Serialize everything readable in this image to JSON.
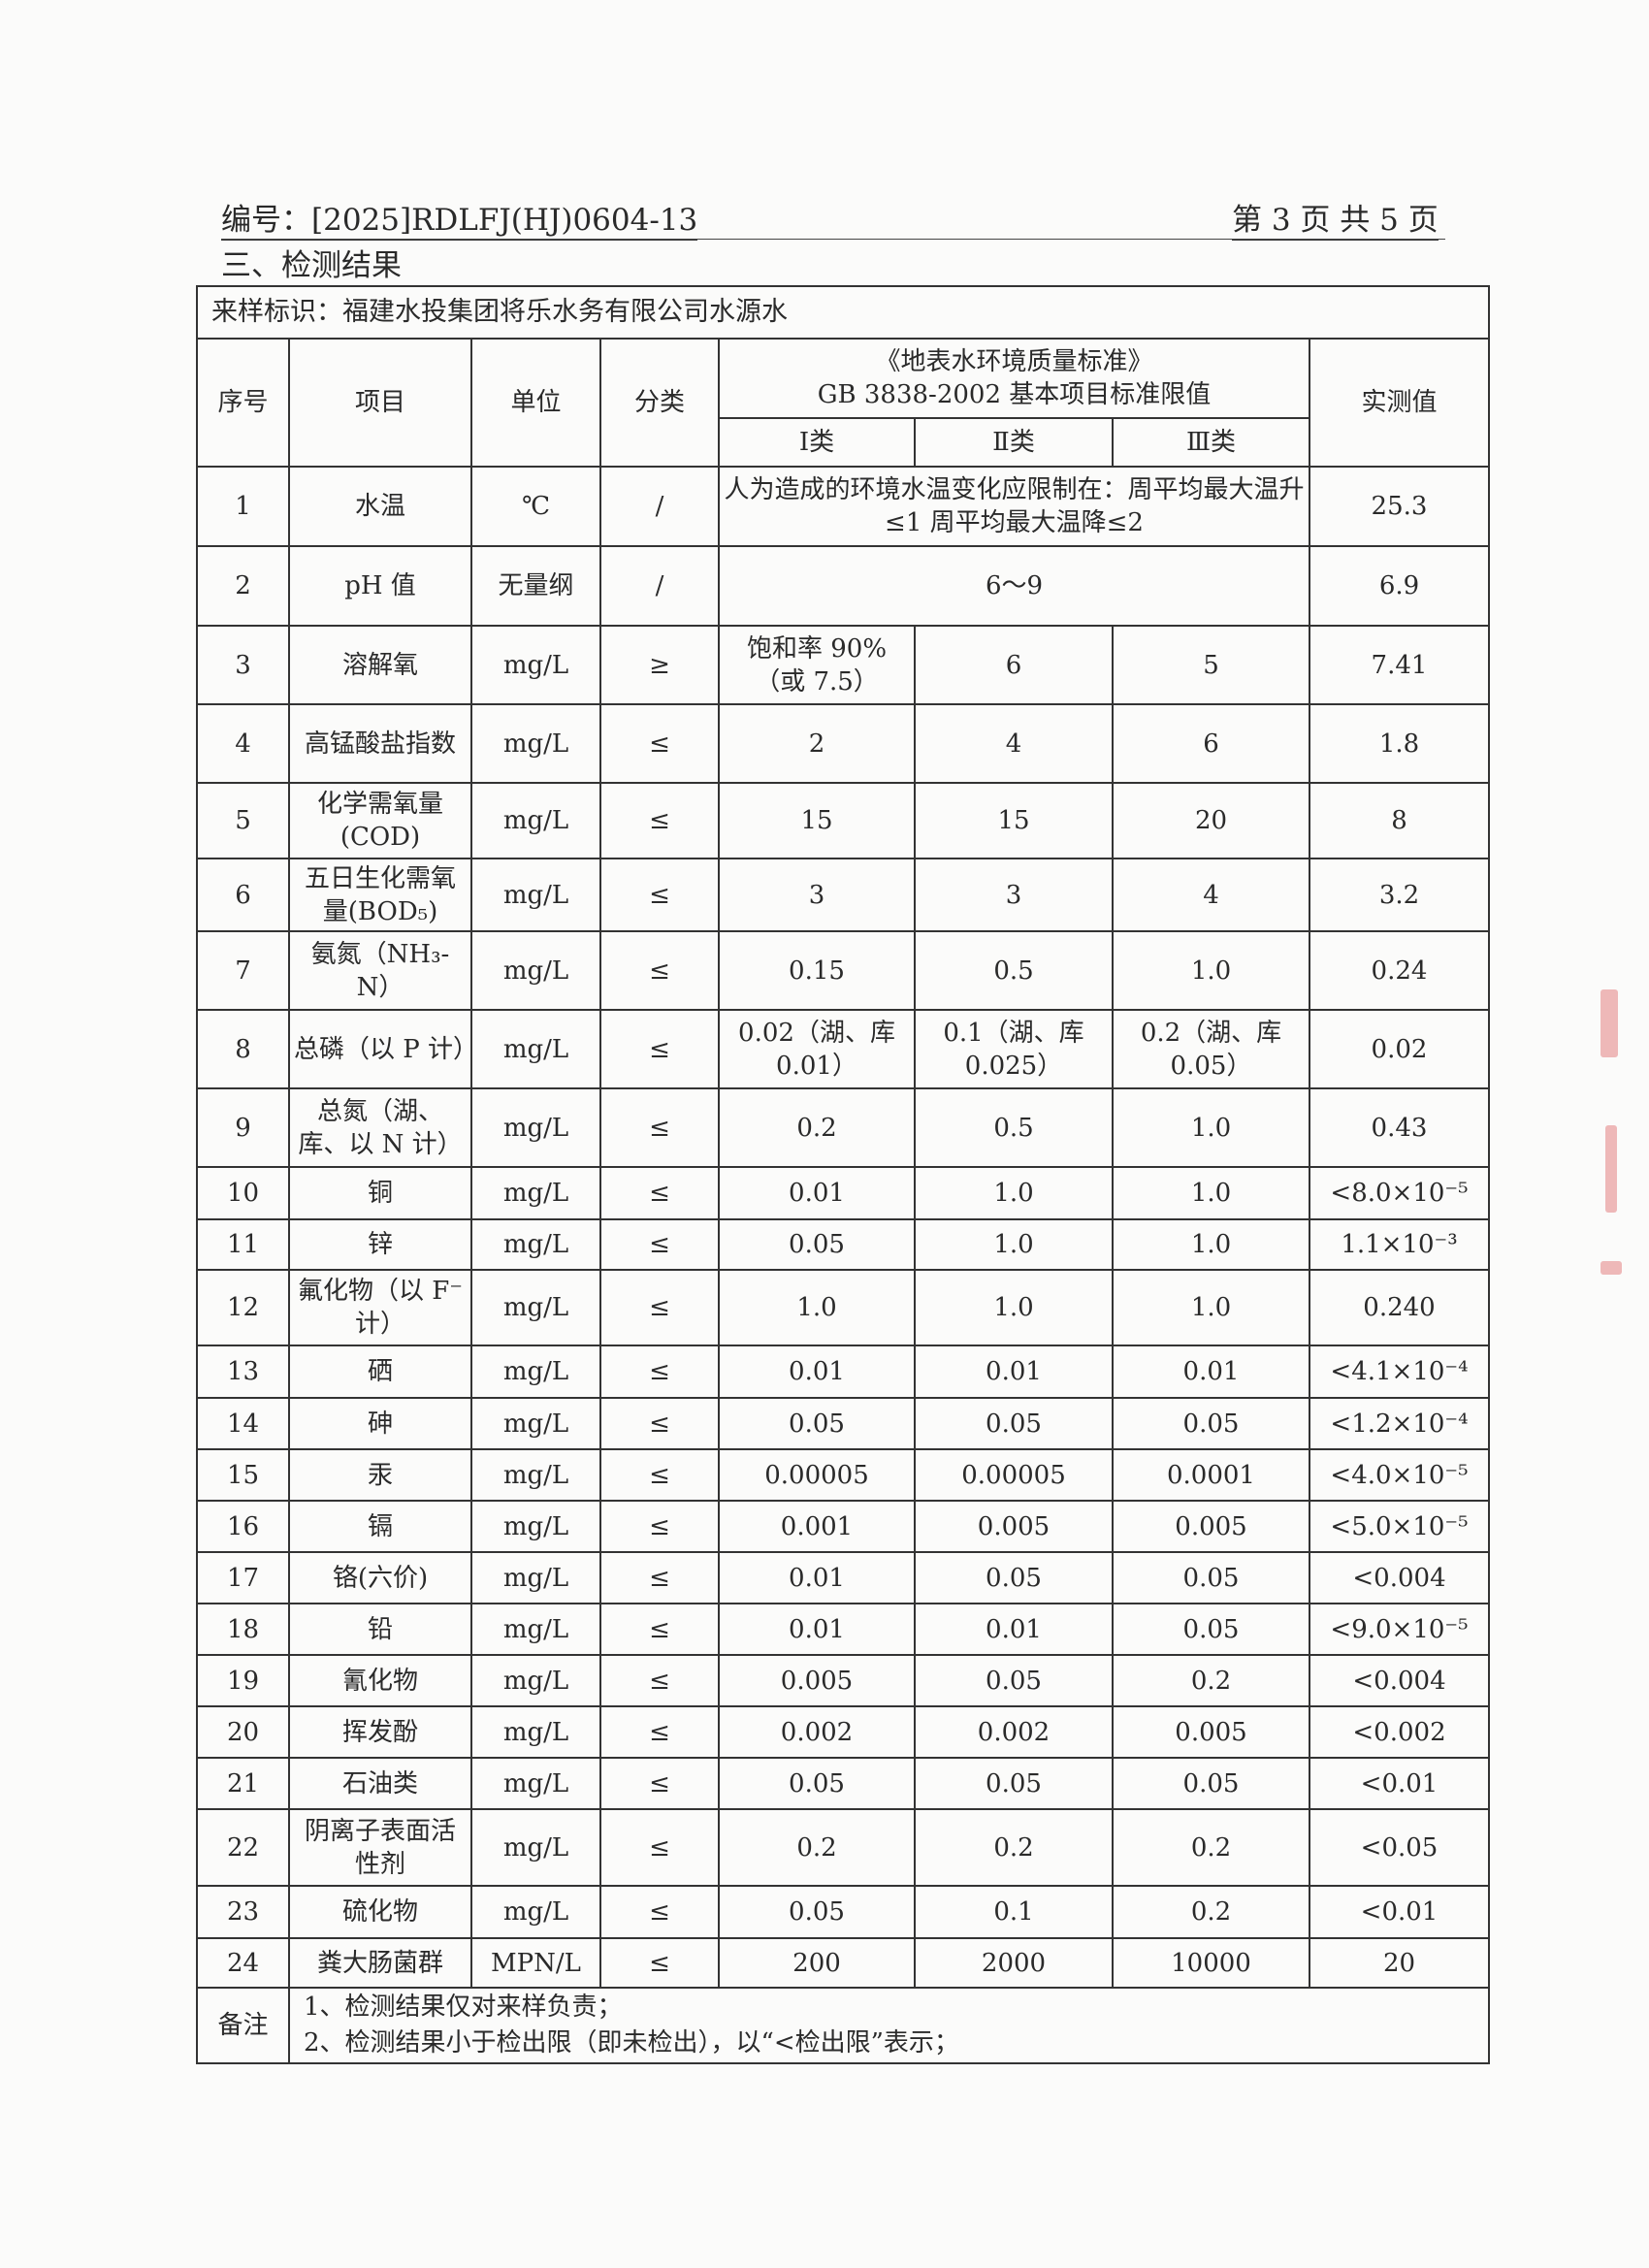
{
  "header": {
    "doc_no": "编号：[2025]RDLFJ(HJ)0604-13",
    "page_no": "第 3 页  共 5 页"
  },
  "section_title": "三、检测结果",
  "sample": "来样标识：福建水投集团将乐水务有限公司水源水",
  "columns": {
    "no": "序号",
    "item": "项目",
    "unit": "单位",
    "class": "分类",
    "standard": "《地表水环境质量标准》GB 3838-2002 基本项目标准限值",
    "standard_line1": "《地表水环境质量标准》",
    "standard_line2": "GB 3838-2002 基本项目标准限值",
    "c1": "Ⅰ类",
    "c2": "Ⅱ类",
    "c3": "Ⅲ类",
    "result": "实测值"
  },
  "rows": [
    {
      "no": "1",
      "item": "水温",
      "unit": "℃",
      "class": "/",
      "merged": "人为造成的环境水温变化应限制在：周平均最大温升≤1 周平均最大温降≤2",
      "result": "25.3"
    },
    {
      "no": "2",
      "item": "pH 值",
      "unit": "无量纲",
      "class": "/",
      "merged": "6～9",
      "result": "6.9"
    },
    {
      "no": "3",
      "item": "溶解氧",
      "unit": "mg/L",
      "class": "≥",
      "c1": "饱和率 90%（或 7.5）",
      "c2": "6",
      "c3": "5",
      "result": "7.41"
    },
    {
      "no": "4",
      "item": "高锰酸盐指数",
      "unit": "mg/L",
      "class": "≤",
      "c1": "2",
      "c2": "4",
      "c3": "6",
      "result": "1.8"
    },
    {
      "no": "5",
      "item": "化学需氧量(COD)",
      "unit": "mg/L",
      "class": "≤",
      "c1": "15",
      "c2": "15",
      "c3": "20",
      "result": "8"
    },
    {
      "no": "6",
      "item": "五日生化需氧量(BOD₅)",
      "unit": "mg/L",
      "class": "≤",
      "c1": "3",
      "c2": "3",
      "c3": "4",
      "result": "3.2"
    },
    {
      "no": "7",
      "item": "氨氮（NH₃-N）",
      "unit": "mg/L",
      "class": "≤",
      "c1": "0.15",
      "c2": "0.5",
      "c3": "1.0",
      "result": "0.24"
    },
    {
      "no": "8",
      "item": "总磷（以 P 计）",
      "unit": "mg/L",
      "class": "≤",
      "c1": "0.02（湖、库 0.01）",
      "c2": "0.1（湖、库 0.025）",
      "c3": "0.2（湖、库 0.05）",
      "result": "0.02"
    },
    {
      "no": "9",
      "item": "总氮（湖、库、以 N 计）",
      "unit": "mg/L",
      "class": "≤",
      "c1": "0.2",
      "c2": "0.5",
      "c3": "1.0",
      "result": "0.43"
    },
    {
      "no": "10",
      "item": "铜",
      "unit": "mg/L",
      "class": "≤",
      "c1": "0.01",
      "c2": "1.0",
      "c3": "1.0",
      "result": "<8.0×10⁻⁵"
    },
    {
      "no": "11",
      "item": "锌",
      "unit": "mg/L",
      "class": "≤",
      "c1": "0.05",
      "c2": "1.0",
      "c3": "1.0",
      "result": "1.1×10⁻³"
    },
    {
      "no": "12",
      "item": "氟化物（以 F⁻计）",
      "unit": "mg/L",
      "class": "≤",
      "c1": "1.0",
      "c2": "1.0",
      "c3": "1.0",
      "result": "0.240"
    },
    {
      "no": "13",
      "item": "硒",
      "unit": "mg/L",
      "class": "≤",
      "c1": "0.01",
      "c2": "0.01",
      "c3": "0.01",
      "result": "<4.1×10⁻⁴"
    },
    {
      "no": "14",
      "item": "砷",
      "unit": "mg/L",
      "class": "≤",
      "c1": "0.05",
      "c2": "0.05",
      "c3": "0.05",
      "result": "<1.2×10⁻⁴"
    },
    {
      "no": "15",
      "item": "汞",
      "unit": "mg/L",
      "class": "≤",
      "c1": "0.00005",
      "c2": "0.00005",
      "c3": "0.0001",
      "result": "<4.0×10⁻⁵"
    },
    {
      "no": "16",
      "item": "镉",
      "unit": "mg/L",
      "class": "≤",
      "c1": "0.001",
      "c2": "0.005",
      "c3": "0.005",
      "result": "<5.0×10⁻⁵"
    },
    {
      "no": "17",
      "item": "铬(六价)",
      "unit": "mg/L",
      "class": "≤",
      "c1": "0.01",
      "c2": "0.05",
      "c3": "0.05",
      "result": "<0.004"
    },
    {
      "no": "18",
      "item": "铅",
      "unit": "mg/L",
      "class": "≤",
      "c1": "0.01",
      "c2": "0.01",
      "c3": "0.05",
      "result": "<9.0×10⁻⁵"
    },
    {
      "no": "19",
      "item": "氰化物",
      "unit": "mg/L",
      "class": "≤",
      "c1": "0.005",
      "c2": "0.05",
      "c3": "0.2",
      "result": "<0.004"
    },
    {
      "no": "20",
      "item": "挥发酚",
      "unit": "mg/L",
      "class": "≤",
      "c1": "0.002",
      "c2": "0.002",
      "c3": "0.005",
      "result": "<0.002"
    },
    {
      "no": "21",
      "item": "石油类",
      "unit": "mg/L",
      "class": "≤",
      "c1": "0.05",
      "c2": "0.05",
      "c3": "0.05",
      "result": "<0.01"
    },
    {
      "no": "22",
      "item": "阴离子表面活性剂",
      "unit": "mg/L",
      "class": "≤",
      "c1": "0.2",
      "c2": "0.2",
      "c3": "0.2",
      "result": "<0.05"
    },
    {
      "no": "23",
      "item": "硫化物",
      "unit": "mg/L",
      "class": "≤",
      "c1": "0.05",
      "c2": "0.1",
      "c3": "0.2",
      "result": "<0.01"
    },
    {
      "no": "24",
      "item": "粪大肠菌群",
      "unit": "MPN/L",
      "class": "≤",
      "c1": "200",
      "c2": "2000",
      "c3": "10000",
      "result": "20"
    }
  ],
  "notes": {
    "label": "备注",
    "lines": [
      "1、检测结果仅对来样负责；",
      "2、检测结果小于检出限（即未检出），以“<检出限”表示；"
    ]
  },
  "colors": {
    "ink": "#2a2a2a",
    "stamp": "#e9a2a2"
  }
}
